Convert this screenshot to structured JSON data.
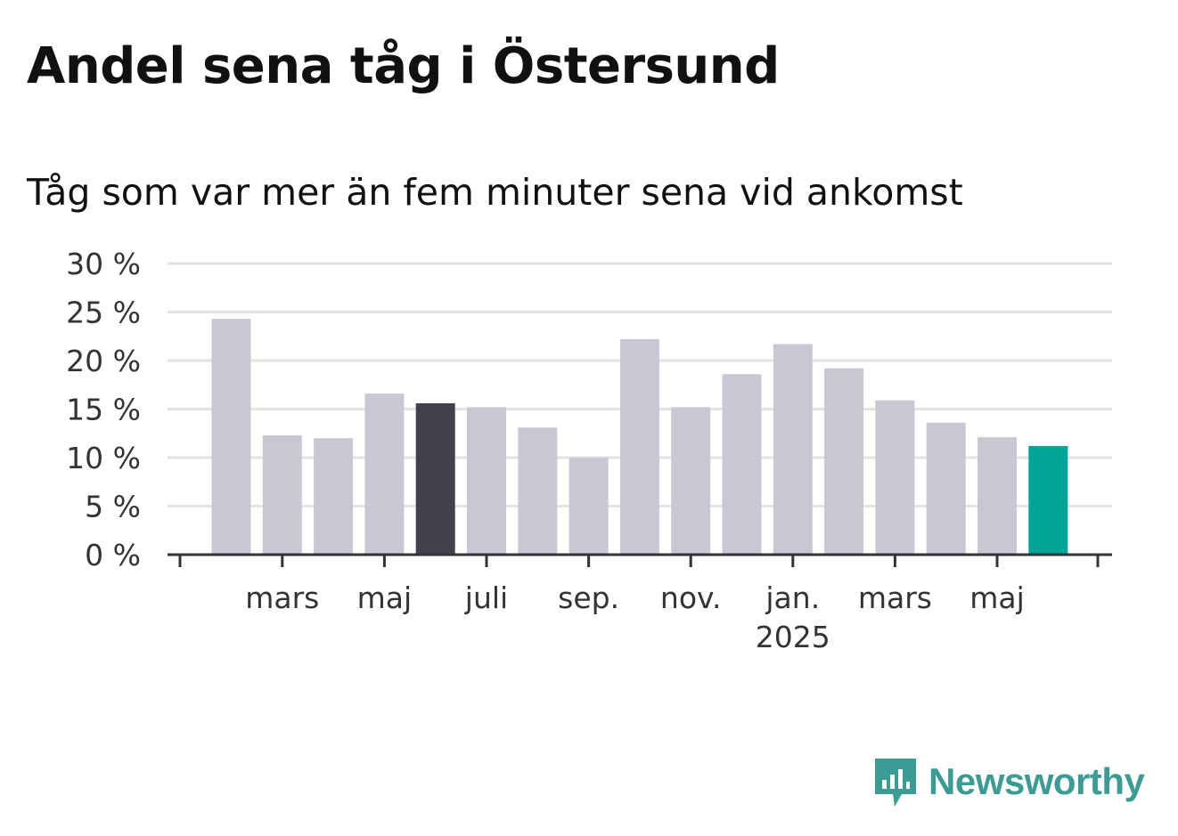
{
  "title": "Andel sena tåg i Östersund",
  "subtitle": "Tåg som var mer än fem minuter sena vid ankomst",
  "brand": {
    "name": "Newsworthy",
    "color": "#3a9c93",
    "icon": "newsworthy-logo-icon"
  },
  "chart_data": {
    "type": "bar",
    "x": [
      "2024-02",
      "2024-03",
      "2024-04",
      "2024-05",
      "2024-06",
      "2024-07",
      "2024-08",
      "2024-09",
      "2024-10",
      "2024-11",
      "2024-12",
      "2025-01",
      "2025-02",
      "2025-03",
      "2025-04",
      "2025-05",
      "2025-06"
    ],
    "values": [
      24.3,
      12.3,
      12.0,
      16.6,
      15.6,
      15.2,
      13.1,
      10.0,
      22.2,
      15.2,
      18.6,
      21.7,
      19.2,
      15.9,
      13.6,
      12.1,
      11.2
    ],
    "highlight": {
      "dark_index": 4,
      "current_index": 16
    },
    "colors": {
      "default": "#c9c7d3",
      "dark": "#43404d",
      "current": "#00a598"
    },
    "ylim": [
      0,
      30
    ],
    "yticks": [
      0,
      5,
      10,
      15,
      20,
      25,
      30
    ],
    "ytick_labels": [
      "0 %",
      "5 %",
      "10 %",
      "15 %",
      "20 %",
      "25 %",
      "30 %"
    ],
    "xtick_labels": [
      {
        "at": "2024-03",
        "label": "mars"
      },
      {
        "at": "2024-05",
        "label": "maj"
      },
      {
        "at": "2024-07",
        "label": "juli"
      },
      {
        "at": "2024-09",
        "label": "sep."
      },
      {
        "at": "2024-11",
        "label": "nov."
      },
      {
        "at": "2025-01",
        "label": "jan.",
        "year": "2025"
      },
      {
        "at": "2025-03",
        "label": "mars"
      },
      {
        "at": "2025-05",
        "label": "maj"
      }
    ],
    "grid": true,
    "xlabel": "",
    "ylabel": ""
  }
}
